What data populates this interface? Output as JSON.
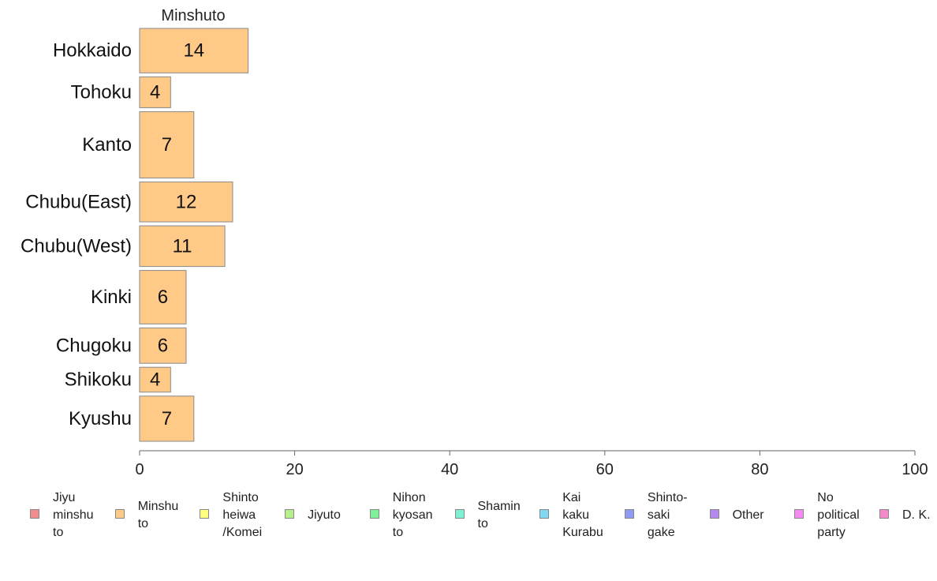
{
  "chart_data": {
    "type": "bar",
    "orientation": "horizontal",
    "title": "Minshuto",
    "categories": [
      "Hokkaido",
      "Tohoku",
      "Kanto",
      "Chubu(East)",
      "Chubu(West)",
      "Kinki",
      "Chugoku",
      "Shikoku",
      "Kyushu"
    ],
    "series": [
      {
        "name": "Minshuto",
        "color": "#ffc987",
        "values": [
          14,
          4,
          7,
          12,
          11,
          6,
          6,
          4,
          7
        ]
      }
    ],
    "bar_weights": [
      0.59,
      0.41,
      0.88,
      0.53,
      0.54,
      0.71,
      0.47,
      0.33,
      0.6
    ],
    "xlim": [
      0,
      100
    ],
    "xticks": [
      "0",
      "20",
      "40",
      "60",
      "80",
      "100"
    ],
    "grid": false,
    "legend_position": "bottom",
    "legend": [
      {
        "label": "Jiyu\nminshu\nto",
        "color": "#f28b8b"
      },
      {
        "label": "Minshu\nto",
        "color": "#ffc987"
      },
      {
        "label": "Shinto\nheiwa\n/Komei",
        "color": "#ffff80"
      },
      {
        "label": "Jiyuto",
        "color": "#b7f08a"
      },
      {
        "label": "Nihon\nkyosan\nto",
        "color": "#80f09a"
      },
      {
        "label": "Shamin\nto",
        "color": "#80f0d2"
      },
      {
        "label": "Kai\nkaku\nKurabu",
        "color": "#80d8f5"
      },
      {
        "label": "Shinto-\nsaki\ngake",
        "color": "#8f9cf5"
      },
      {
        "label": "Other",
        "color": "#b58af0"
      },
      {
        "label": "No\npolitical\nparty",
        "color": "#f58af0"
      },
      {
        "label": "D. K.",
        "color": "#f58ac8"
      }
    ]
  }
}
